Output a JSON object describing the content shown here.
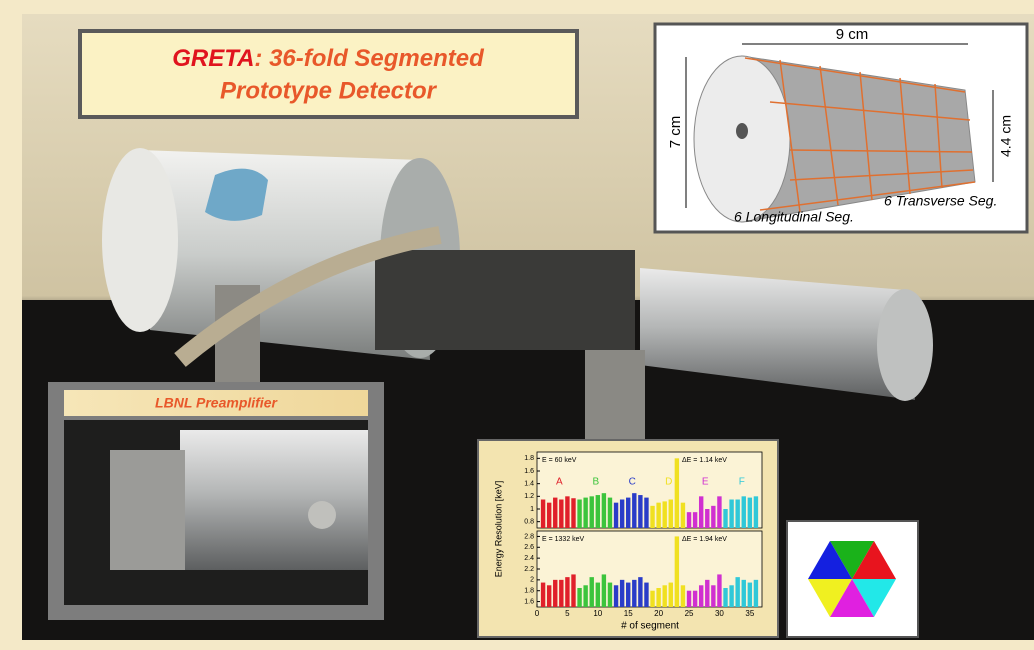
{
  "title": {
    "name": "GRETA",
    "rest": ": 36-fold Segmented",
    "line2": "Prototype Detector"
  },
  "detector_diagram": {
    "length": "9 cm",
    "diameter": "7 cm",
    "end_diameter": "4.4 cm",
    "transverse": "6 Transverse Seg.",
    "longitudinal": "6 Longitudinal Seg."
  },
  "preamp": {
    "label": "LBNL Preamplifier"
  },
  "chart_data": [
    {
      "type": "bar",
      "ylabel": "Energy Resolution [keV]",
      "annotations": [
        "E = 60 keV",
        "ΔE = 1.14 keV"
      ],
      "xlim": [
        0,
        37
      ],
      "ylim": [
        0.7,
        1.9
      ],
      "yticks": [
        0.8,
        1,
        1.2,
        1.4,
        1.6,
        1.8
      ],
      "series": [
        {
          "name": "A",
          "color": "#e0202a",
          "x": [
            1,
            2,
            3,
            4,
            5,
            6
          ],
          "values": [
            1.15,
            1.1,
            1.18,
            1.15,
            1.2,
            1.17
          ]
        },
        {
          "name": "B",
          "color": "#3cc43c",
          "x": [
            7,
            8,
            9,
            10,
            11,
            12
          ],
          "values": [
            1.15,
            1.18,
            1.2,
            1.22,
            1.25,
            1.18
          ]
        },
        {
          "name": "C",
          "color": "#2a3cc8",
          "x": [
            13,
            14,
            15,
            16,
            17,
            18
          ],
          "values": [
            1.1,
            1.15,
            1.18,
            1.25,
            1.22,
            1.18
          ]
        },
        {
          "name": "D",
          "color": "#f0e020",
          "x": [
            19,
            20,
            21,
            22,
            23,
            24
          ],
          "values": [
            1.05,
            1.1,
            1.12,
            1.15,
            1.8,
            1.1
          ]
        },
        {
          "name": "E",
          "color": "#d030d0",
          "x": [
            25,
            26,
            27,
            28,
            29,
            30
          ],
          "values": [
            0.95,
            0.95,
            1.2,
            1.0,
            1.05,
            1.2
          ]
        },
        {
          "name": "F",
          "color": "#30c8d8",
          "x": [
            31,
            32,
            33,
            34,
            35,
            36
          ],
          "values": [
            1.0,
            1.15,
            1.15,
            1.2,
            1.18,
            1.2
          ]
        }
      ]
    },
    {
      "type": "bar",
      "xlabel": "# of segment",
      "annotations": [
        "E = 1332 keV",
        "ΔE = 1.94 keV"
      ],
      "xlim": [
        0,
        37
      ],
      "xticks": [
        0,
        5,
        10,
        15,
        20,
        25,
        30,
        35
      ],
      "ylim": [
        1.5,
        2.9
      ],
      "yticks": [
        1.6,
        1.8,
        2,
        2.2,
        2.4,
        2.6,
        2.8
      ],
      "series": [
        {
          "color": "#e0202a",
          "x": [
            1,
            2,
            3,
            4,
            5,
            6
          ],
          "values": [
            1.95,
            1.9,
            2.0,
            2.0,
            2.05,
            2.1
          ]
        },
        {
          "color": "#3cc43c",
          "x": [
            7,
            8,
            9,
            10,
            11,
            12
          ],
          "values": [
            1.85,
            1.9,
            2.05,
            1.95,
            2.1,
            1.95
          ]
        },
        {
          "color": "#2a3cc8",
          "x": [
            13,
            14,
            15,
            16,
            17,
            18
          ],
          "values": [
            1.9,
            2.0,
            1.95,
            2.0,
            2.05,
            1.95
          ]
        },
        {
          "color": "#f0e020",
          "x": [
            19,
            20,
            21,
            22,
            23,
            24
          ],
          "values": [
            1.8,
            1.85,
            1.9,
            1.95,
            2.8,
            1.9
          ]
        },
        {
          "color": "#d030d0",
          "x": [
            25,
            26,
            27,
            28,
            29,
            30
          ],
          "values": [
            1.8,
            1.8,
            1.9,
            2.0,
            1.9,
            2.1
          ]
        },
        {
          "color": "#30c8d8",
          "x": [
            31,
            32,
            33,
            34,
            35,
            36
          ],
          "values": [
            1.85,
            1.9,
            2.05,
            2.0,
            1.95,
            2.0
          ]
        }
      ]
    }
  ]
}
